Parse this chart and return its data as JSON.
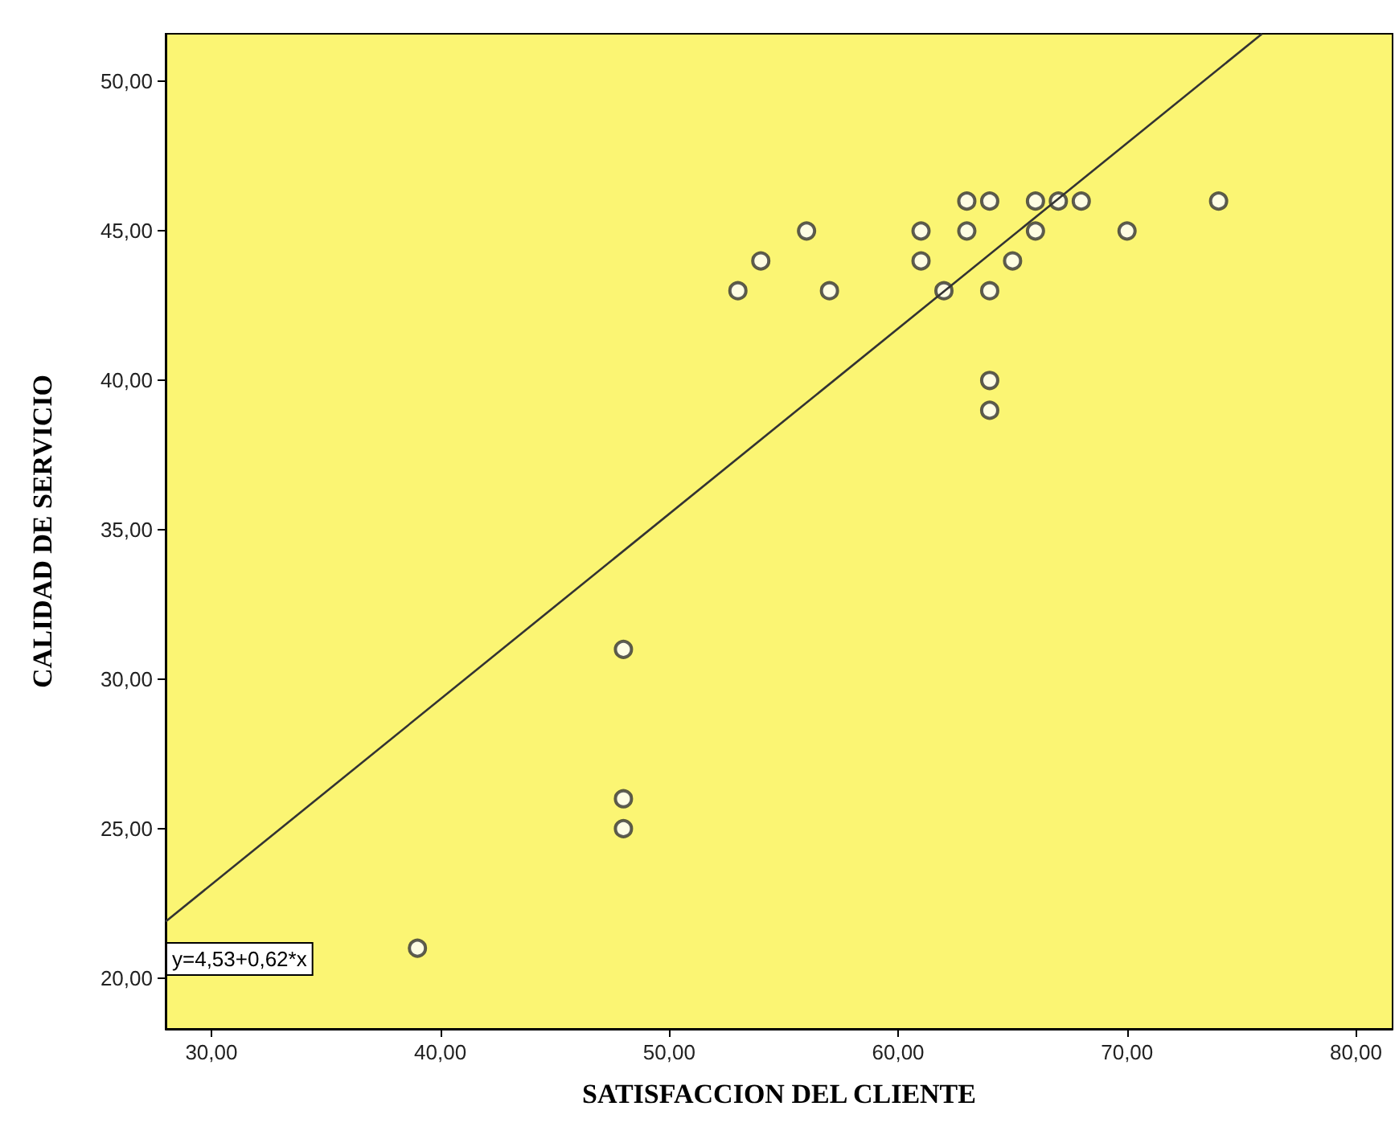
{
  "chart_data": {
    "type": "scatter",
    "xlabel": "SATISFACCION DEL CLIENTE",
    "ylabel": "CALIDAD DE SERVICIO",
    "xlim": [
      28,
      81.6
    ],
    "ylim": [
      18.3,
      51.6
    ],
    "xticks": [
      {
        "value": 30,
        "label": "30,00"
      },
      {
        "value": 40,
        "label": "40,00"
      },
      {
        "value": 50,
        "label": "50,00"
      },
      {
        "value": 60,
        "label": "60,00"
      },
      {
        "value": 70,
        "label": "70,00"
      },
      {
        "value": 80,
        "label": "80,00"
      }
    ],
    "yticks": [
      {
        "value": 20,
        "label": "20,00"
      },
      {
        "value": 25,
        "label": "25,00"
      },
      {
        "value": 30,
        "label": "30,00"
      },
      {
        "value": 35,
        "label": "35,00"
      },
      {
        "value": 40,
        "label": "40,00"
      },
      {
        "value": 45,
        "label": "45,00"
      },
      {
        "value": 50,
        "label": "50,00"
      }
    ],
    "grid": false,
    "marker": "circle",
    "annotations": [
      "y=4,53+0,62*x"
    ],
    "series": [
      {
        "type": "scatter",
        "color": "#333333",
        "x": [
          39,
          48,
          48,
          48,
          53,
          54,
          56,
          57,
          61,
          61,
          62,
          63,
          63,
          64,
          64,
          64,
          64,
          65,
          66,
          66,
          67,
          68,
          70,
          74
        ],
        "values": [
          21,
          25,
          26,
          31,
          43,
          44,
          45,
          43,
          45,
          44,
          43,
          46,
          45,
          46,
          43,
          40,
          39,
          44,
          46,
          45,
          46,
          46,
          45,
          46
        ]
      },
      {
        "type": "line",
        "color": "#333333",
        "x": [
          28,
          75.9
        ],
        "values": [
          21.89,
          51.6
        ],
        "marker": "none"
      }
    ]
  }
}
